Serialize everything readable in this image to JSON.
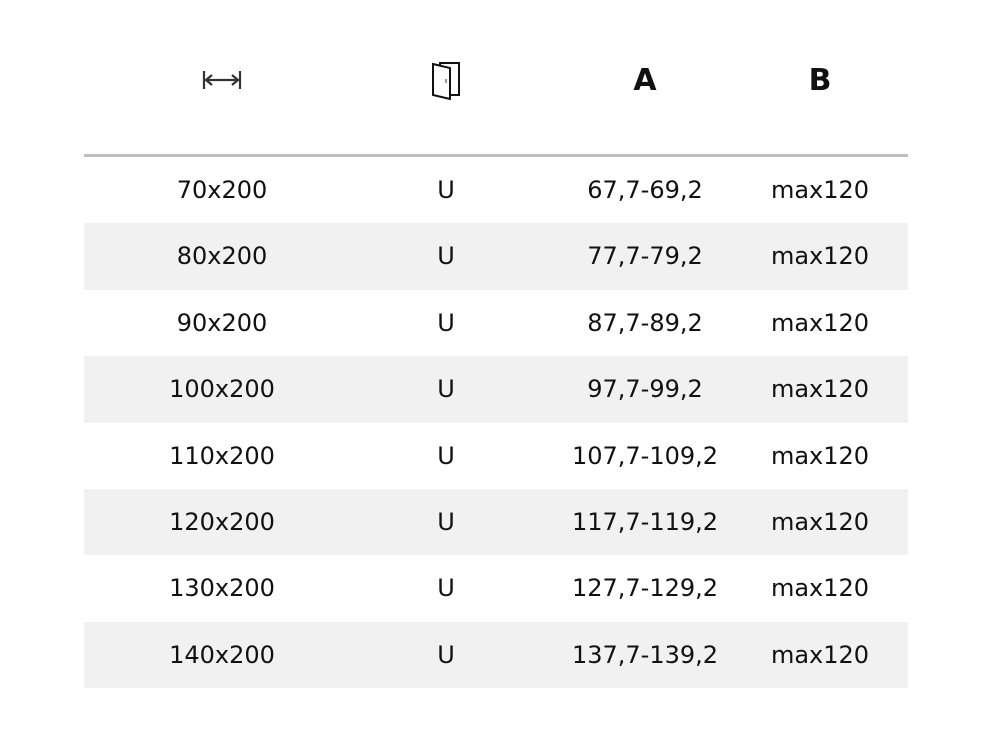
{
  "header": {
    "width_icon": "width-arrows-icon",
    "door_icon": "door-icon",
    "col_a": "A",
    "col_b": "B"
  },
  "colors": {
    "stripe": "#f1f1f1",
    "rule": "#bfbfbf"
  },
  "rows": [
    {
      "size": "70x200",
      "type": "U",
      "a": "67,7-69,2",
      "b": "max120"
    },
    {
      "size": "80x200",
      "type": "U",
      "a": "77,7-79,2",
      "b": "max120"
    },
    {
      "size": "90x200",
      "type": "U",
      "a": "87,7-89,2",
      "b": "max120"
    },
    {
      "size": "100x200",
      "type": "U",
      "a": "97,7-99,2",
      "b": "max120"
    },
    {
      "size": "110x200",
      "type": "U",
      "a": "107,7-109,2",
      "b": "max120"
    },
    {
      "size": "120x200",
      "type": "U",
      "a": "117,7-119,2",
      "b": "max120"
    },
    {
      "size": "130x200",
      "type": "U",
      "a": "127,7-129,2",
      "b": "max120"
    },
    {
      "size": "140x200",
      "type": "U",
      "a": "137,7-139,2",
      "b": "max120"
    }
  ]
}
